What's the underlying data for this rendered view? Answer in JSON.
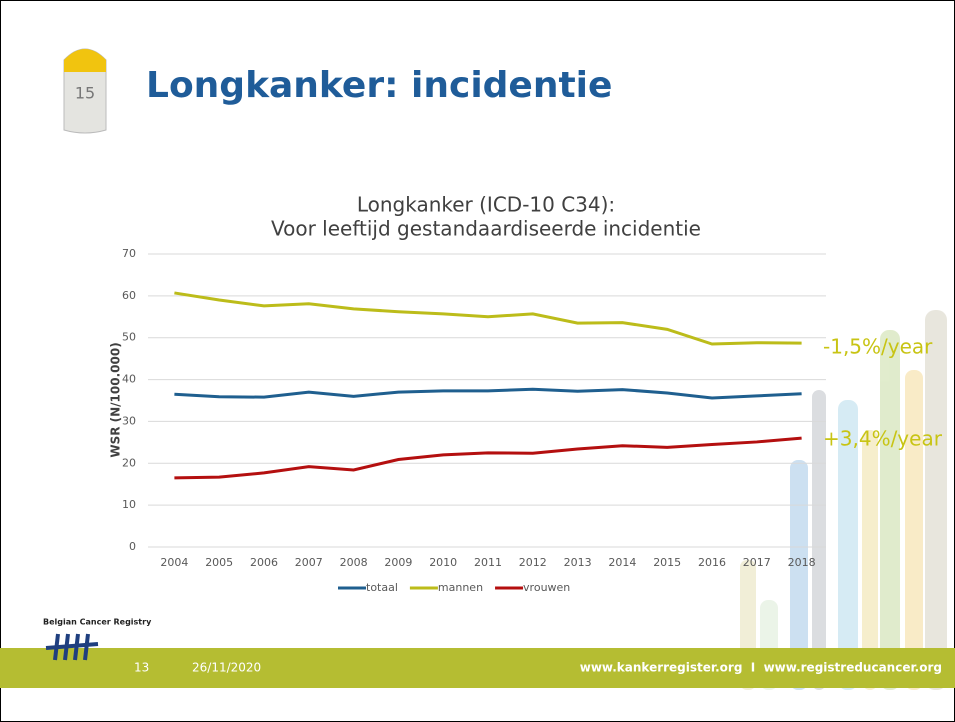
{
  "slide": {
    "title": "Longkanker: incidentie",
    "milestone": "15",
    "logo_text": "Belgian Cancer Registry",
    "page_number": "13",
    "date": "26/11/2020",
    "footer_links": "www.kankerregister.org  I  www.registreducancer.org"
  },
  "chart_data": {
    "type": "line",
    "title": [
      "Longkanker (ICD-10 C34):",
      "Voor leeftijd gestandaardiseerde incidentie"
    ],
    "y_label": "WSR (N/100.000)",
    "categories": [
      "2004",
      "2005",
      "2006",
      "2007",
      "2008",
      "2009",
      "2010",
      "2011",
      "2012",
      "2013",
      "2014",
      "2015",
      "2016",
      "2017",
      "2018"
    ],
    "series": [
      {
        "name": "totaal",
        "color": "#1f5f8f",
        "values": [
          36.5,
          35.9,
          35.8,
          37.0,
          36.0,
          37.0,
          37.3,
          37.3,
          37.7,
          37.2,
          37.6,
          36.8,
          35.6,
          36.1,
          36.6
        ]
      },
      {
        "name": "mannen",
        "color": "#bcbc1a",
        "values": [
          60.7,
          59.0,
          57.6,
          58.1,
          56.9,
          56.2,
          55.7,
          55.0,
          55.7,
          53.5,
          53.6,
          52.0,
          48.5,
          48.8,
          48.7
        ]
      },
      {
        "name": "vrouwen",
        "color": "#b40f0f",
        "values": [
          16.5,
          16.7,
          17.7,
          19.2,
          18.4,
          20.9,
          22.0,
          22.5,
          22.4,
          23.4,
          24.2,
          23.8,
          24.5,
          25.1,
          26.0
        ]
      }
    ],
    "annotations": [
      {
        "text": "-1,5%/year",
        "color": "#c8c414"
      },
      {
        "text": "+3,4%/year",
        "color": "#c8c414"
      }
    ],
    "ylim": [
      0,
      70
    ],
    "yticks": [
      0,
      10,
      20,
      30,
      40,
      50,
      60,
      70
    ],
    "grid": true,
    "legend": "bottom"
  }
}
